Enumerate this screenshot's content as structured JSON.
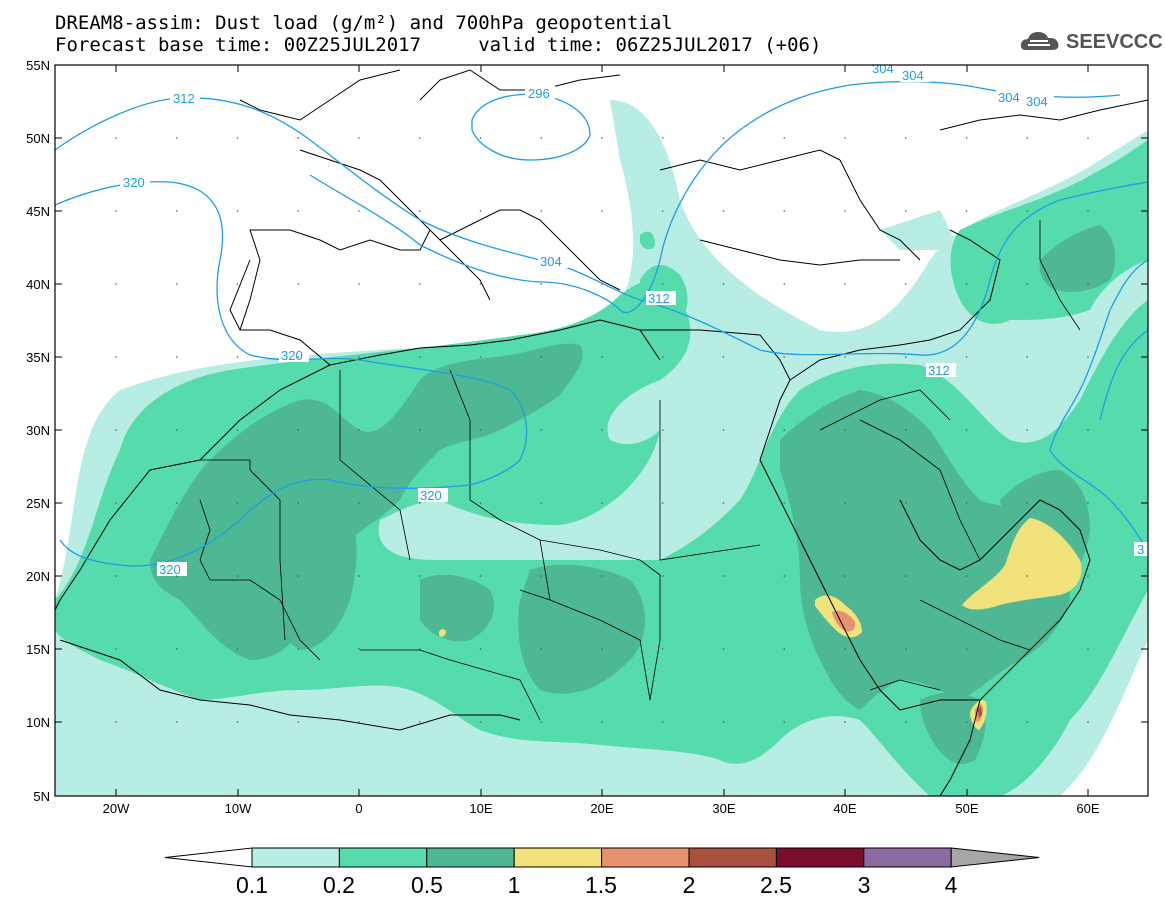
{
  "title_line1": "DREAM8-assim: Dust load (g/m²) and 700hPa geopotential",
  "title_line2": "Forecast base time: 00Z25JUL2017     valid time: 06Z25JUL2017 (+06)",
  "logo_text": "SEEVCCC",
  "lat_labels": [
    "55N",
    "50N",
    "45N",
    "40N",
    "35N",
    "30N",
    "25N",
    "20N",
    "15N",
    "10N",
    "5N"
  ],
  "lon_labels": [
    "20W",
    "10W",
    "0",
    "10E",
    "20E",
    "30E",
    "40E",
    "50E",
    "60E"
  ],
  "colorbar": {
    "colors": [
      "#ffffff",
      "#b8ede4",
      "#55dbac",
      "#4eb894",
      "#f1e27b",
      "#e79170",
      "#a7503e",
      "#7c0d2a",
      "#8a6aa0",
      "#a6a6a6"
    ],
    "labels": [
      "0.1",
      "0.2",
      "0.5",
      "1",
      "1.5",
      "2",
      "2.5",
      "3",
      "4"
    ]
  },
  "contours": {
    "color": "#1e9ee6",
    "labels": [
      "312",
      "296",
      "304",
      "304",
      "304",
      "304",
      "320",
      "304",
      "312",
      "320",
      "312",
      "320",
      "320",
      "3"
    ]
  }
}
